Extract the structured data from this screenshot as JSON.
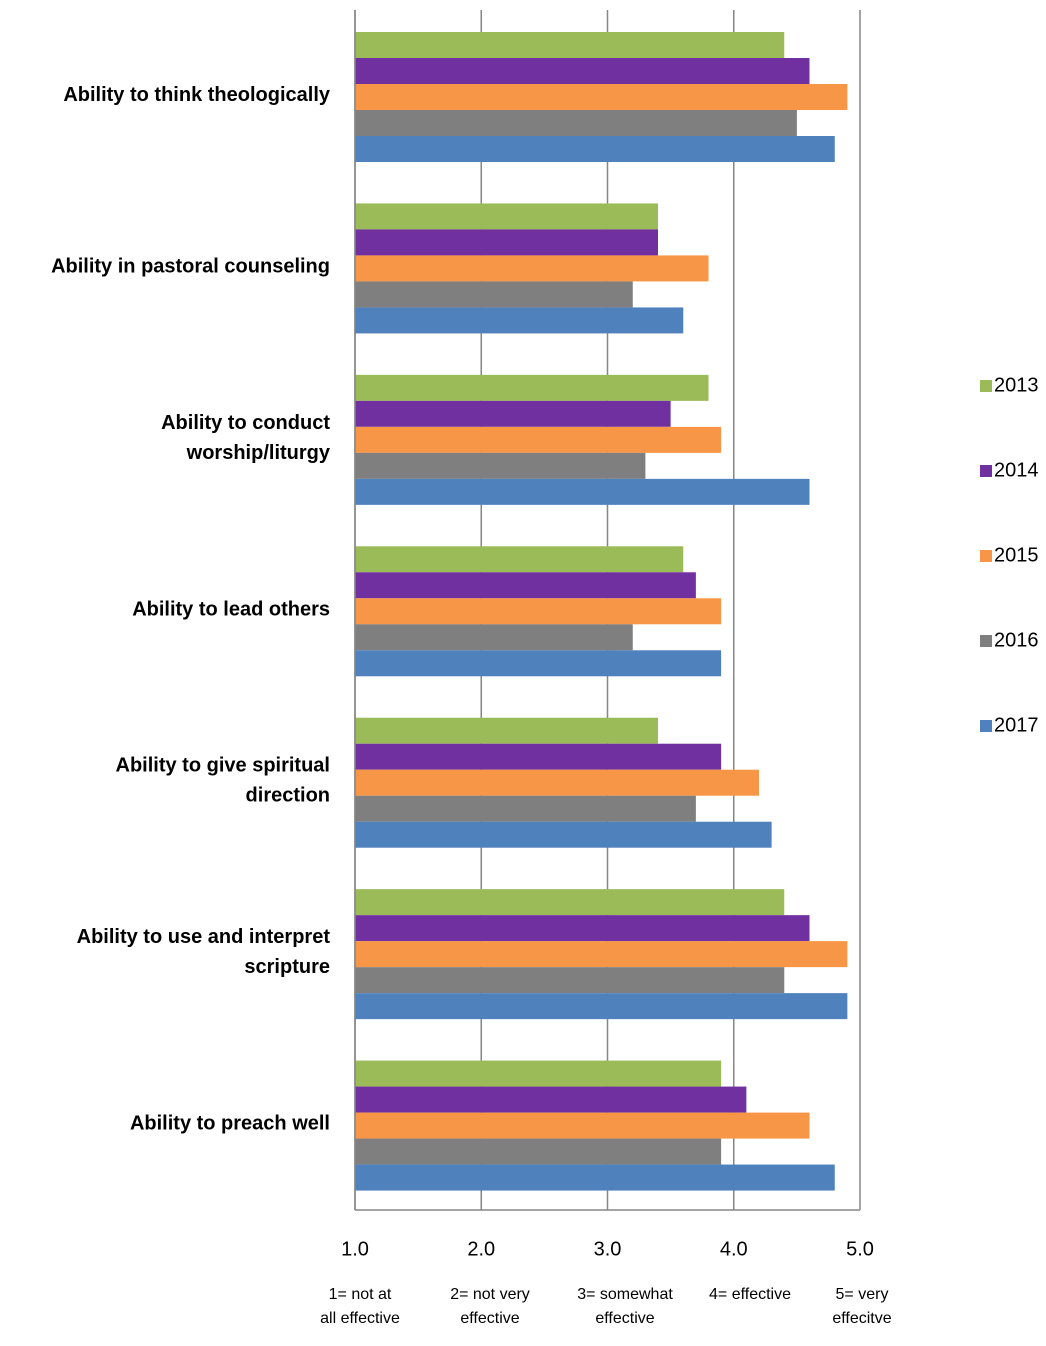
{
  "chart_data": {
    "type": "bar",
    "orientation": "horizontal",
    "categories": [
      [
        "Ability to think theologically"
      ],
      [
        "Ability in pastoral counseling"
      ],
      [
        "Ability to conduct",
        "worship/liturgy"
      ],
      [
        "Ability to lead others"
      ],
      [
        "Ability to give spiritual",
        "direction"
      ],
      [
        "Ability to use and interpret",
        "scripture"
      ],
      [
        "Ability to preach well"
      ]
    ],
    "series": [
      {
        "name": "2013",
        "color": "#9bbb59",
        "values": [
          4.4,
          3.4,
          3.8,
          3.6,
          3.4,
          4.4,
          3.9
        ]
      },
      {
        "name": "2014",
        "color": "#7030a0",
        "values": [
          4.6,
          3.4,
          3.5,
          3.7,
          3.9,
          4.6,
          4.1
        ]
      },
      {
        "name": "2015",
        "color": "#f79646",
        "values": [
          4.9,
          3.8,
          3.9,
          3.9,
          4.2,
          4.9,
          4.6
        ]
      },
      {
        "name": "2016",
        "color": "#7f7f7f",
        "values": [
          4.5,
          3.2,
          3.3,
          3.2,
          3.7,
          4.4,
          3.9
        ]
      },
      {
        "name": "2017",
        "color": "#4f81bd",
        "values": [
          4.8,
          3.6,
          4.6,
          3.9,
          4.3,
          4.9,
          4.8
        ]
      }
    ],
    "xlim": [
      1,
      5
    ],
    "xticks": [
      {
        "value": 1,
        "label": "1.0"
      },
      {
        "value": 2,
        "label": "2.0"
      },
      {
        "value": 3,
        "label": "3.0"
      },
      {
        "value": 4,
        "label": "4.0"
      },
      {
        "value": 5,
        "label": "5.0"
      }
    ],
    "scale_labels": [
      [
        "1= not at",
        "all effective"
      ],
      [
        "2= not very",
        "effective"
      ],
      [
        "3= somewhat",
        "effective"
      ],
      [
        "4= effective"
      ],
      [
        "5= very",
        "effecitve"
      ]
    ],
    "grid": true,
    "legend": "right"
  }
}
